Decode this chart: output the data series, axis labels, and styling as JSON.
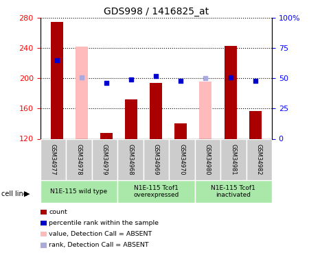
{
  "title": "GDS998 / 1416825_at",
  "samples": [
    "GSM34977",
    "GSM34978",
    "GSM34979",
    "GSM34968",
    "GSM34969",
    "GSM34970",
    "GSM34980",
    "GSM34981",
    "GSM34982"
  ],
  "count_values": [
    275,
    null,
    128,
    172,
    194,
    140,
    null,
    243,
    157
  ],
  "count_absent": [
    null,
    242,
    null,
    null,
    null,
    null,
    196,
    null,
    null
  ],
  "percentile_values": [
    65,
    null,
    46,
    49,
    52,
    48,
    null,
    51,
    48
  ],
  "percentile_absent": [
    null,
    51,
    null,
    null,
    null,
    null,
    50,
    null,
    null
  ],
  "ylim_left": [
    120,
    280
  ],
  "ylim_right": [
    0,
    100
  ],
  "yticks_left": [
    120,
    160,
    200,
    240,
    280
  ],
  "yticks_right": [
    0,
    25,
    50,
    75,
    100
  ],
  "ytick_labels_left": [
    "120",
    "160",
    "200",
    "240",
    "280"
  ],
  "ytick_labels_right": [
    "0",
    "25",
    "50",
    "75",
    "100%"
  ],
  "groups": [
    {
      "label": "N1E-115 wild type",
      "start": 0,
      "end": 3,
      "color": "#aae8aa"
    },
    {
      "label": "N1E-115 Tcof1\noverexpressed",
      "start": 3,
      "end": 6,
      "color": "#aae8aa"
    },
    {
      "label": "N1E-115 Tcof1\ninactivated",
      "start": 6,
      "end": 9,
      "color": "#aae8aa"
    }
  ],
  "bar_color_count": "#aa0000",
  "bar_color_absent": "#ffbbbb",
  "dot_color_present": "#0000cc",
  "dot_color_absent": "#aaaadd",
  "bar_width": 0.5,
  "dot_size": 25,
  "bg_color": "#ffffff",
  "sample_box_color": "#cccccc",
  "cell_line_label": "cell line",
  "legend_items": [
    {
      "color": "#aa0000",
      "label": "count"
    },
    {
      "color": "#0000cc",
      "label": "percentile rank within the sample"
    },
    {
      "color": "#ffbbbb",
      "label": "value, Detection Call = ABSENT"
    },
    {
      "color": "#aaaadd",
      "label": "rank, Detection Call = ABSENT"
    }
  ]
}
